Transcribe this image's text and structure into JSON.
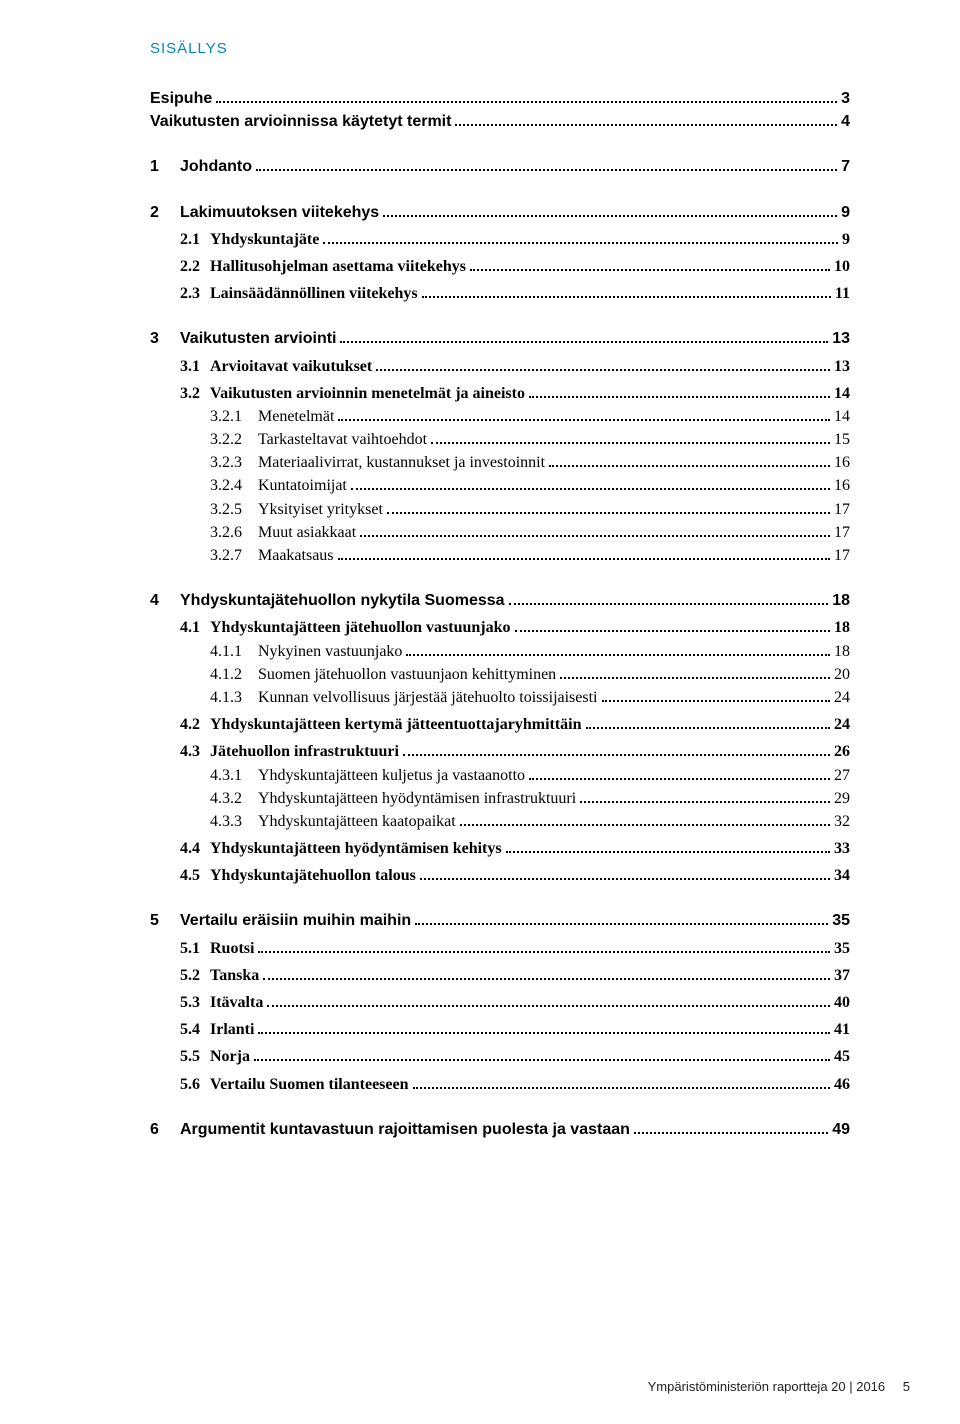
{
  "section_label": "SISÄLLYS",
  "toc": [
    {
      "level": "standalone",
      "num": "",
      "label": "Esipuhe",
      "page": "3"
    },
    {
      "level": "standalone",
      "num": "",
      "label": "Vaikutusten arvioinnissa käytetyt termit",
      "page": "4"
    },
    {
      "gap": true
    },
    {
      "level": "lev0",
      "num": "1",
      "label": "Johdanto",
      "page": "7"
    },
    {
      "gap": true
    },
    {
      "level": "lev0",
      "num": "2",
      "label": "Lakimuutoksen viitekehys",
      "page": "9"
    },
    {
      "level": "lev1",
      "num": "2.1",
      "label": "Yhdyskuntajäte",
      "page": "9"
    },
    {
      "level": "lev1",
      "num": "2.2",
      "label": "Hallitusohjelman asettama viitekehys",
      "page": "10"
    },
    {
      "level": "lev1",
      "num": "2.3",
      "label": "Lainsäädännöllinen viitekehys",
      "page": "11"
    },
    {
      "gap": true
    },
    {
      "level": "lev0",
      "num": "3",
      "label": "Vaikutusten arviointi",
      "page": "13"
    },
    {
      "level": "lev1",
      "num": "3.1",
      "label": "Arvioitavat vaikutukset",
      "page": "13"
    },
    {
      "level": "lev1",
      "num": "3.2",
      "label": "Vaikutusten arvioinnin menetelmät ja aineisto",
      "page": "14"
    },
    {
      "level": "lev2",
      "num": "3.2.1",
      "label": "Menetelmät",
      "page": "14"
    },
    {
      "level": "lev2",
      "num": "3.2.2",
      "label": "Tarkasteltavat vaihtoehdot",
      "page": "15"
    },
    {
      "level": "lev2",
      "num": "3.2.3",
      "label": "Materiaalivirrat, kustannukset ja investoinnit",
      "page": "16"
    },
    {
      "level": "lev2",
      "num": "3.2.4",
      "label": "Kuntatoimijat",
      "page": "16"
    },
    {
      "level": "lev2",
      "num": "3.2.5",
      "label": "Yksityiset yritykset",
      "page": "17"
    },
    {
      "level": "lev2",
      "num": "3.2.6",
      "label": "Muut asiakkaat",
      "page": "17"
    },
    {
      "level": "lev2",
      "num": "3.2.7",
      "label": "Maakatsaus",
      "page": "17"
    },
    {
      "gap": true
    },
    {
      "level": "lev0",
      "num": "4",
      "label": "Yhdyskuntajätehuollon nykytila Suomessa",
      "page": "18"
    },
    {
      "level": "lev1",
      "num": "4.1",
      "label": "Yhdyskuntajätteen jätehuollon vastuunjako",
      "page": "18"
    },
    {
      "level": "lev2",
      "num": "4.1.1",
      "label": "Nykyinen vastuunjako",
      "page": "18"
    },
    {
      "level": "lev2",
      "num": "4.1.2",
      "label": "Suomen jätehuollon vastuunjaon kehittyminen",
      "page": "20"
    },
    {
      "level": "lev2",
      "num": "4.1.3",
      "label": "Kunnan velvollisuus järjestää jätehuolto toissijaisesti",
      "page": "24"
    },
    {
      "level": "lev1",
      "num": "4.2",
      "label": "Yhdyskuntajätteen kertymä jätteentuottajaryhmittäin",
      "page": "24"
    },
    {
      "level": "lev1",
      "num": "4.3",
      "label": "Jätehuollon infrastruktuuri",
      "page": "26"
    },
    {
      "level": "lev2",
      "num": "4.3.1",
      "label": "Yhdyskuntajätteen kuljetus ja vastaanotto",
      "page": "27"
    },
    {
      "level": "lev2",
      "num": "4.3.2",
      "label": "Yhdyskuntajätteen hyödyntämisen infrastruktuuri",
      "page": "29"
    },
    {
      "level": "lev2",
      "num": "4.3.3",
      "label": "Yhdyskuntajätteen kaatopaikat",
      "page": "32"
    },
    {
      "level": "lev1",
      "num": "4.4",
      "label": "Yhdyskuntajätteen hyödyntämisen kehitys",
      "page": "33"
    },
    {
      "level": "lev1",
      "num": "4.5",
      "label": "Yhdyskuntajätehuollon talous",
      "page": "34"
    },
    {
      "gap": true
    },
    {
      "level": "lev0",
      "num": "5",
      "label": "Vertailu eräisiin muihin maihin",
      "page": "35"
    },
    {
      "level": "lev1",
      "num": "5.1",
      "label": "Ruotsi",
      "page": "35"
    },
    {
      "level": "lev1",
      "num": "5.2",
      "label": "Tanska",
      "page": "37"
    },
    {
      "level": "lev1",
      "num": "5.3",
      "label": "Itävalta",
      "page": "40"
    },
    {
      "level": "lev1",
      "num": "5.4",
      "label": "Irlanti",
      "page": "41"
    },
    {
      "level": "lev1",
      "num": "5.5",
      "label": "Norja",
      "page": "45"
    },
    {
      "level": "lev1",
      "num": "5.6",
      "label": "Vertailu Suomen tilanteeseen",
      "page": "46"
    },
    {
      "gap": true
    },
    {
      "level": "lev0",
      "num": "6",
      "label": "Argumentit kuntavastuun rajoittamisen puolesta ja vastaan",
      "page": "49"
    }
  ],
  "footer": {
    "text": "Ympäristöministeriön raportteja  20 | 2016",
    "pagenum": "5"
  }
}
